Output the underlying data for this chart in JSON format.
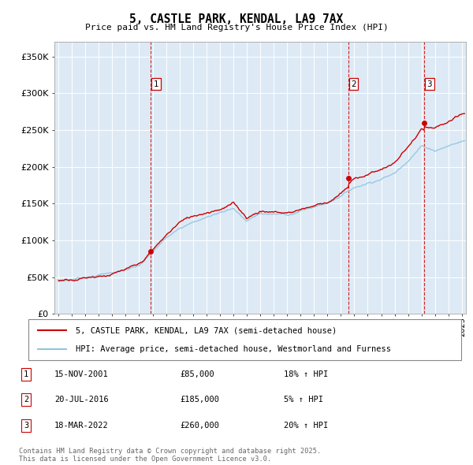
{
  "title": "5, CASTLE PARK, KENDAL, LA9 7AX",
  "subtitle": "Price paid vs. HM Land Registry's House Price Index (HPI)",
  "ylim": [
    0,
    370000
  ],
  "yticks": [
    0,
    50000,
    100000,
    150000,
    200000,
    250000,
    300000,
    350000
  ],
  "ytick_labels": [
    "£0",
    "£50K",
    "£100K",
    "£150K",
    "£200K",
    "£250K",
    "£300K",
    "£350K"
  ],
  "bg_color": "#ddeaf5",
  "grid_color": "#ffffff",
  "sale_color": "#cc0000",
  "hpi_color": "#92c5de",
  "transactions": [
    {
      "date": "2001-11-15",
      "price": 85000,
      "label": "1"
    },
    {
      "date": "2016-07-20",
      "price": 185000,
      "label": "2"
    },
    {
      "date": "2022-03-18",
      "price": 260000,
      "label": "3"
    }
  ],
  "transaction_info": [
    {
      "label": "1",
      "date": "15-NOV-2001",
      "price": "£85,000",
      "hpi_change": "18% ↑ HPI"
    },
    {
      "label": "2",
      "date": "20-JUL-2016",
      "price": "£185,000",
      "hpi_change": "5% ↑ HPI"
    },
    {
      "label": "3",
      "date": "18-MAR-2022",
      "price": "£260,000",
      "hpi_change": "20% ↑ HPI"
    }
  ],
  "legend_line1": "5, CASTLE PARK, KENDAL, LA9 7AX (semi-detached house)",
  "legend_line2": "HPI: Average price, semi-detached house, Westmorland and Furness",
  "footer": "Contains HM Land Registry data © Crown copyright and database right 2025.\nThis data is licensed under the Open Government Licence v3.0.",
  "xmin": 1994.7,
  "xmax": 2025.3,
  "sale_years": [
    2001.872,
    2016.549,
    2022.206
  ],
  "sale_prices": [
    85000,
    185000,
    260000
  ]
}
